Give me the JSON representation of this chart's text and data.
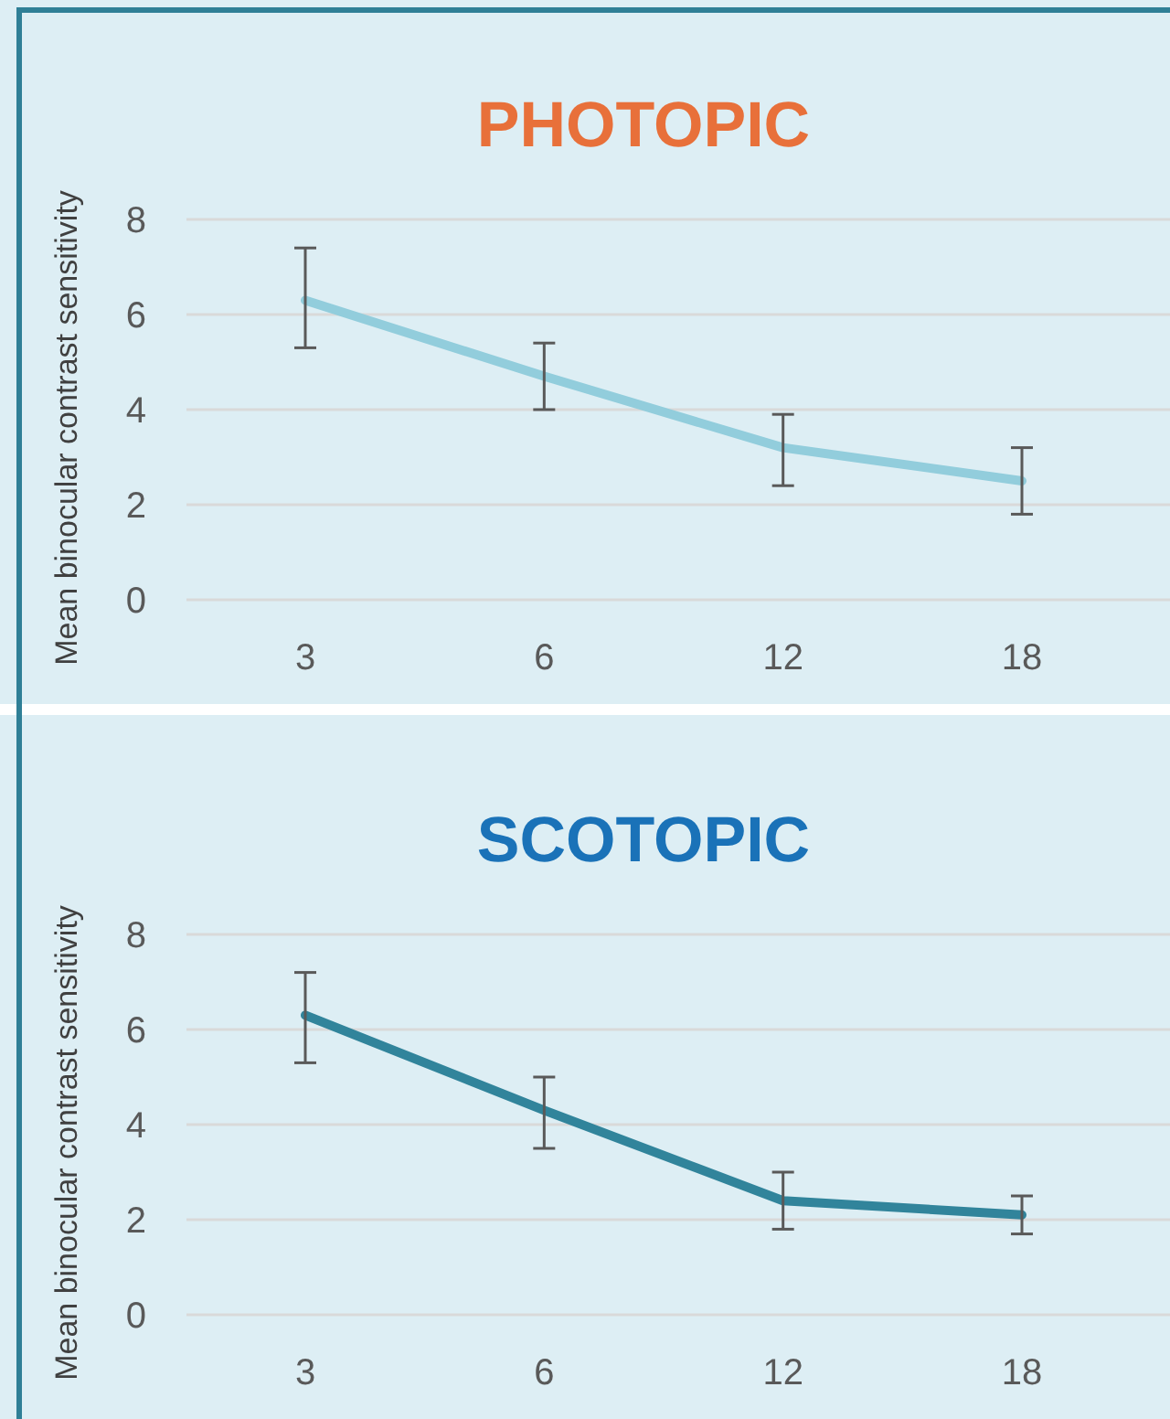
{
  "chart_data": [
    {
      "type": "line",
      "title": "PHOTOPIC",
      "ylabel": "Mean binocular contrast sensitivity",
      "categories": [
        "3",
        "6",
        "12",
        "18"
      ],
      "ylim": [
        0,
        8
      ],
      "yticks": [
        0,
        2,
        4,
        6,
        8
      ],
      "grid": "y",
      "marker": "none",
      "line_style": "solid",
      "series": [
        {
          "color": "#92cddc",
          "values": [
            6.3,
            4.7,
            3.2,
            2.5
          ],
          "errors": [
            [
              5.3,
              7.4
            ],
            [
              4.0,
              5.4
            ],
            [
              2.4,
              3.9
            ],
            [
              1.8,
              3.2
            ]
          ]
        }
      ]
    },
    {
      "type": "line",
      "title": "SCOTOPIC",
      "ylabel": "Mean binocular contrast sensitivity",
      "categories": [
        "3",
        "6",
        "12",
        "18"
      ],
      "ylim": [
        0,
        8
      ],
      "yticks": [
        0,
        2,
        4,
        6,
        8
      ],
      "grid": "y",
      "marker": "none",
      "line_style": "solid",
      "series": [
        {
          "color": "#31849b",
          "values": [
            6.3,
            4.3,
            2.4,
            2.1
          ],
          "errors": [
            [
              5.3,
              7.2
            ],
            [
              3.5,
              5.0
            ],
            [
              1.8,
              3.0
            ],
            [
              1.7,
              2.5
            ]
          ]
        }
      ]
    }
  ]
}
